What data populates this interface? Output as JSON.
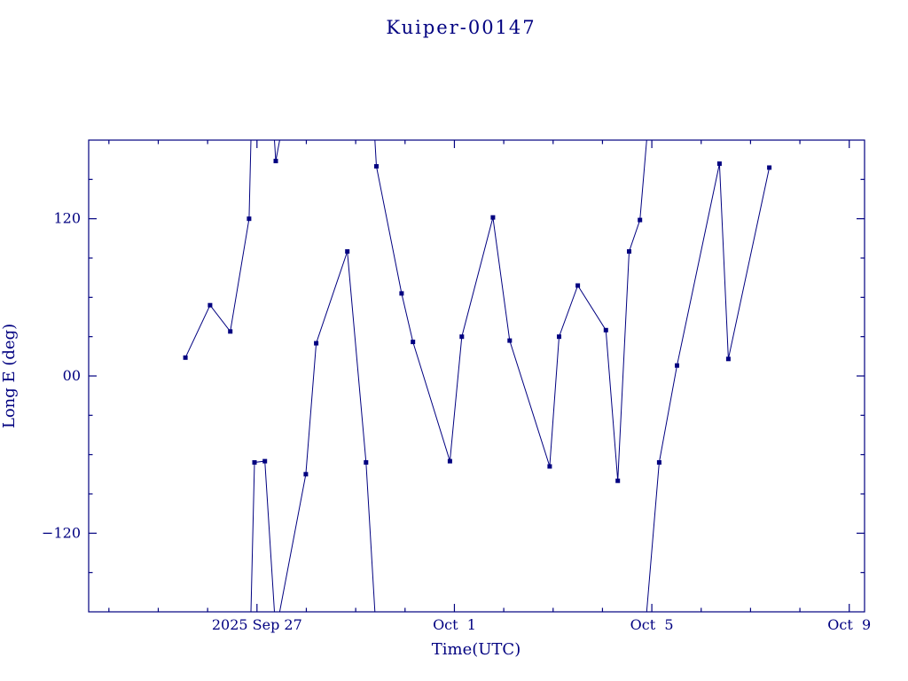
{
  "colors": {
    "plot": "#000080",
    "background": "#ffffff"
  },
  "chart_data": {
    "type": "line",
    "title": "Kuiper-00147",
    "xlabel": "Time(UTC)",
    "ylabel": "Long E (deg)",
    "x_axis_unit": "days relative to 2025 Sep 27 00:00 UTC",
    "xlim": [
      -3.41,
      12.31
    ],
    "ylim": [
      -180,
      180
    ],
    "wrap_at_deg": 180,
    "grid": "off",
    "legend": "none",
    "marker": "filled-square",
    "x_ticks": [
      {
        "t": 0,
        "label": "2025 Sep 27"
      },
      {
        "t": 4,
        "label": "Oct  1"
      },
      {
        "t": 8,
        "label": "Oct  5"
      },
      {
        "t": 12,
        "label": "Oct  9"
      }
    ],
    "x_minor_tick_step": 1,
    "y_ticks": [
      {
        "v": 120,
        "label": "120"
      },
      {
        "v": 0,
        "label": "00"
      },
      {
        "v": -120,
        "label": "−120"
      }
    ],
    "y_minor_tick_step": 30,
    "points_t_days_lon_deg": [
      [
        -1.45,
        14
      ],
      [
        -0.95,
        54
      ],
      [
        -0.54,
        34
      ],
      [
        -0.16,
        120
      ],
      [
        -0.05,
        -66
      ],
      [
        0.16,
        -65
      ],
      [
        0.38,
        164
      ],
      [
        0.99,
        -75
      ],
      [
        1.2,
        25
      ],
      [
        1.83,
        95
      ],
      [
        2.21,
        -66
      ],
      [
        2.42,
        160
      ],
      [
        2.93,
        63
      ],
      [
        3.16,
        26
      ],
      [
        3.91,
        -65
      ],
      [
        4.15,
        30
      ],
      [
        4.78,
        121
      ],
      [
        5.12,
        27
      ],
      [
        5.93,
        -69
      ],
      [
        6.12,
        30
      ],
      [
        6.5,
        69
      ],
      [
        7.07,
        35
      ],
      [
        7.31,
        -80
      ],
      [
        7.54,
        95
      ],
      [
        7.76,
        119
      ],
      [
        8.15,
        -66
      ],
      [
        8.51,
        8
      ],
      [
        9.37,
        162
      ],
      [
        9.55,
        13
      ],
      [
        10.38,
        159
      ]
    ]
  }
}
